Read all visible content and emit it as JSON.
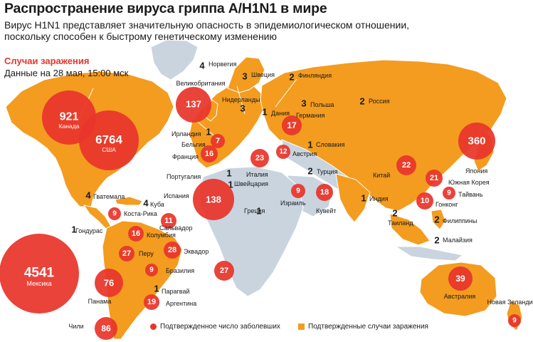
{
  "title": "Распространение вируса гриппа A/H1N1 в мире",
  "subtitle_line1": "Вирус H1N1 представляет значительную опасность в эпидемиологическом отношении,",
  "subtitle_line2": "поскольку способен к быстрому генетическому изменению",
  "section_title": "Случаи заражения",
  "data_date": "Данные на 28 мая, 15:00 мск",
  "legend": {
    "confirmed_count": "Подтвержденное число заболевших",
    "confirmed_cases": "Подтвержденные случаи заражения"
  },
  "colors": {
    "affected": "#f39c1f",
    "unaffected": "#c9d4df",
    "bubble": "#e8352b",
    "leader": "#ffffff"
  },
  "countries": [
    {
      "name": "Канада",
      "count": "921"
    },
    {
      "name": "США",
      "count": "6764"
    },
    {
      "name": "Мексика",
      "count": "4541"
    },
    {
      "name": "Норвегия",
      "count": "4"
    },
    {
      "name": "Швеция",
      "count": "3"
    },
    {
      "name": "Финляндия",
      "count": "2"
    },
    {
      "name": "Великобритания",
      "count": "137"
    },
    {
      "name": "Нидерланды",
      "count": "3"
    },
    {
      "name": "Дания",
      "count": "1"
    },
    {
      "name": "Польша",
      "count": "3"
    },
    {
      "name": "Россия",
      "count": "2"
    },
    {
      "name": "Германия",
      "count": "17"
    },
    {
      "name": "Ирландия",
      "count": "1"
    },
    {
      "name": "Бельгия",
      "count": "7"
    },
    {
      "name": "Словакия",
      "count": "1"
    },
    {
      "name": "Франция",
      "count": "16"
    },
    {
      "name": "Австрия",
      "count": "12"
    },
    {
      "name": "Португалия",
      "count": "1"
    },
    {
      "name": "Италия",
      "count": "23"
    },
    {
      "name": "Швейцария",
      "count": "1"
    },
    {
      "name": "Турция",
      "count": "2"
    },
    {
      "name": "Испания",
      "count": "138"
    },
    {
      "name": "Греция",
      "count": "1"
    },
    {
      "name": "Израиль",
      "count": "9"
    },
    {
      "name": "Кувейт",
      "count": "18"
    },
    {
      "name": "Индия",
      "count": "1"
    },
    {
      "name": "Китай",
      "count": "22"
    },
    {
      "name": "Япония",
      "count": "360"
    },
    {
      "name": "Южная Корея",
      "count": "21"
    },
    {
      "name": "Тайвань",
      "count": "9"
    },
    {
      "name": "Гонконг",
      "count": "10"
    },
    {
      "name": "Таиланд",
      "count": "2"
    },
    {
      "name": "Филиппины",
      "count": "2"
    },
    {
      "name": "Малайзия",
      "count": "2"
    },
    {
      "name": "Гватемала",
      "count": "4"
    },
    {
      "name": "Куба",
      "count": "4"
    },
    {
      "name": "Коста-Рика",
      "count": "9"
    },
    {
      "name": "Гондурас",
      "count": "1"
    },
    {
      "name": "Сальвадор",
      "count": "11"
    },
    {
      "name": "Колумбия",
      "count": "16"
    },
    {
      "name": "Перу",
      "count": "27"
    },
    {
      "name": "Эквадор",
      "count": "28"
    },
    {
      "name": "Бразилия",
      "count": "9"
    },
    {
      "name": "Панама",
      "count": "76"
    },
    {
      "name": "Парагвай",
      "count": "1"
    },
    {
      "name": "Аргентина",
      "count": "19"
    },
    {
      "name": "Чили",
      "count": "86"
    },
    {
      "name": "Австралия",
      "count": "39"
    },
    {
      "name": "Новая Зеландия",
      "count": "9"
    },
    {
      "name": "",
      "count": "27"
    }
  ]
}
